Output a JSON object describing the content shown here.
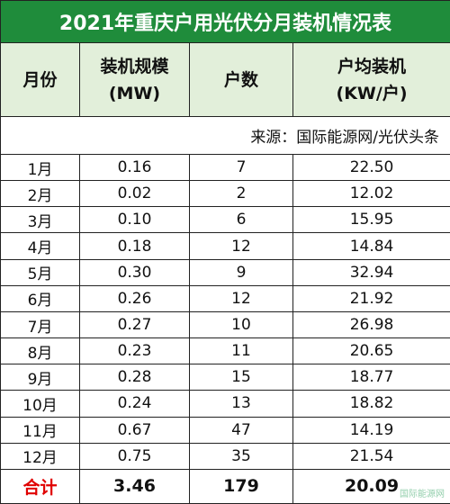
{
  "title": "2021年重庆户用光伏分月装机情况表",
  "header": [
    [
      "月份"
    ],
    [
      "装机规模",
      "(MW)"
    ],
    [
      "户数"
    ],
    [
      "户均装机",
      "(KW/户)"
    ]
  ],
  "source": "来源：国际能源网/光伏头条",
  "rows": [
    [
      "1月",
      "0.16",
      "7",
      "22.50"
    ],
    [
      "2月",
      "0.02",
      "2",
      "12.02"
    ],
    [
      "3月",
      "0.10",
      "6",
      "15.95"
    ],
    [
      "4月",
      "0.18",
      "12",
      "14.84"
    ],
    [
      "5月",
      "0.30",
      "9",
      "32.94"
    ],
    [
      "6月",
      "0.26",
      "12",
      "21.92"
    ],
    [
      "7月",
      "0.27",
      "10",
      "26.98"
    ],
    [
      "8月",
      "0.23",
      "11",
      "20.65"
    ],
    [
      "9月",
      "0.28",
      "15",
      "18.77"
    ],
    [
      "10月",
      "0.24",
      "13",
      "18.82"
    ],
    [
      "11月",
      "0.67",
      "47",
      "14.19"
    ],
    [
      "12月",
      "0.75",
      "35",
      "21.54"
    ]
  ],
  "total": [
    "合计",
    "3.46",
    "179",
    "20.09"
  ],
  "watermark": "国际能源网"
}
